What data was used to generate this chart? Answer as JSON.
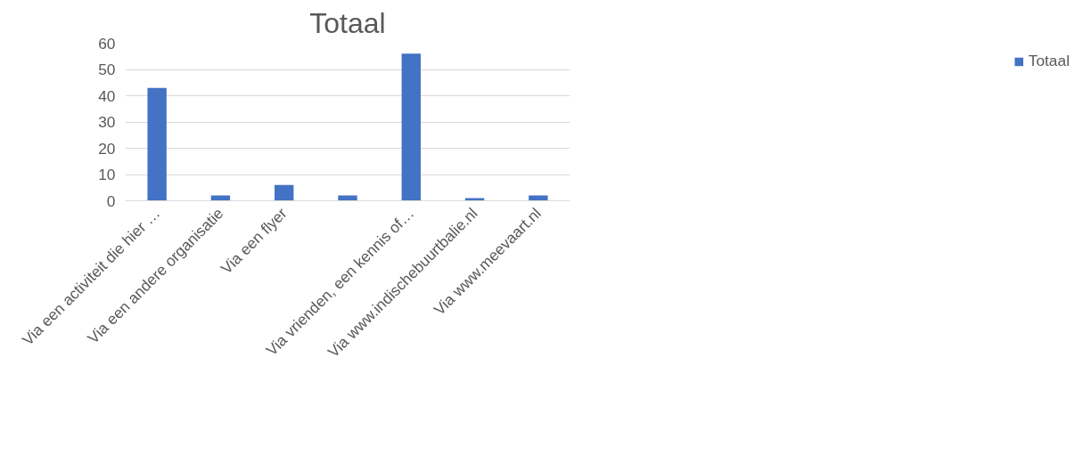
{
  "chart_data": {
    "type": "bar",
    "title": "Totaal",
    "categories": [
      "Via een activiteit die hier …",
      "Via een andere organisatie",
      "Via een flyer",
      null,
      "Via vrienden, een kennis of…",
      "Via www.indischebuurtbalie.nl",
      "Via www.meevaart.nl"
    ],
    "series": [
      {
        "name": "Totaal",
        "color": "#4472c4",
        "values": [
          43,
          2,
          6,
          2,
          56,
          1,
          2
        ]
      }
    ],
    "ylim": [
      0,
      60
    ],
    "yticks": [
      0,
      10,
      20,
      30,
      40,
      50,
      60
    ],
    "grid": "y",
    "legend": "right"
  }
}
